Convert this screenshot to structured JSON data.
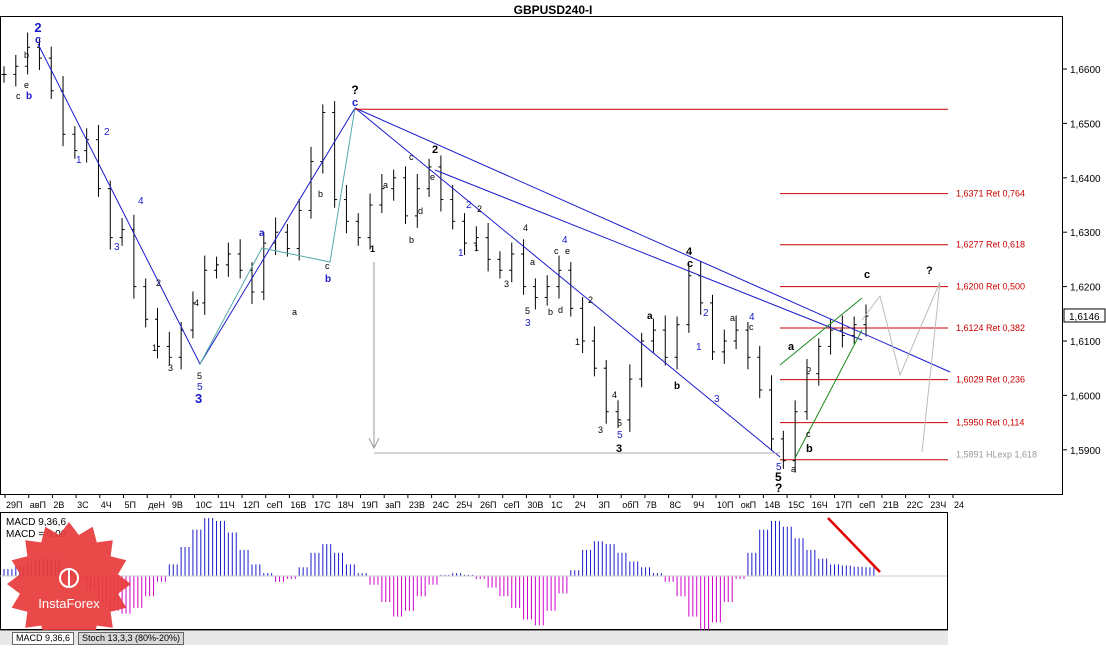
{
  "title": "GBPUSD240-I",
  "current_price": "1,6146",
  "price_axis_labels": [
    "1,6600",
    "1,6500",
    "1,6400",
    "1,6300",
    "1,6200",
    "1,6100",
    "1,6000",
    "1,5900"
  ],
  "date_axis_labels": [
    "29П",
    "авП",
    "2В",
    "3С",
    "4Ч",
    "5П",
    "деН",
    "9В",
    "10С",
    "11Ч",
    "12П",
    "сеП",
    "16В",
    "17С",
    "18Ч",
    "19П",
    "заП",
    "23В",
    "24С",
    "25Ч",
    "26П",
    "сеП",
    "30В",
    "1С",
    "2Ч",
    "3П",
    "обП",
    "7В",
    "8С",
    "9Ч",
    "10П",
    "окП",
    "14В",
    "15С",
    "16Ч",
    "17П",
    "сеП",
    "21В",
    "22С",
    "23Ч",
    "24"
  ],
  "macd_label": "MACD 9,36,6",
  "macd_value_label": "MACD = 0,00",
  "tabs": [
    "MACD 9,36,6",
    "Stoch 13,3,3 (80%-20%)"
  ],
  "logo_text": "InstaForex",
  "fib_levels": [
    {
      "label": "1,6371 Ret 0,764",
      "price": 1.6371
    },
    {
      "label": "1,6277 Ret 0,618",
      "price": 1.6277
    },
    {
      "label": "1,6200 Ret 0,500",
      "price": 1.62
    },
    {
      "label": "1,6124 Ret 0,382",
      "price": 1.6124
    },
    {
      "label": "1,6029 Ret 0,236",
      "price": 1.6029
    },
    {
      "label": "1,5950 Ret 0,114",
      "price": 1.595
    }
  ],
  "expansion_level": {
    "label": "1,5891 HLexp 1,618",
    "price": 1.5891
  },
  "top_resistance_price": 1.6526,
  "colors": {
    "fib": "#cc0000",
    "channel": "#1a1acc",
    "wave_blue": "#1a1acc",
    "macd_pos": "#1a1acc",
    "macd_neg": "#cc00cc",
    "logo": "#e8393a",
    "green_channel": "#1a8a1a"
  },
  "chart_data": {
    "type": "candlestick",
    "title": "GBPUSD240-I",
    "ylim": [
      1.581,
      1.67
    ],
    "close_series": [
      1.659,
      1.6605,
      1.664,
      1.662,
      1.656,
      1.648,
      1.645,
      1.647,
      1.638,
      1.629,
      1.6305,
      1.62,
      1.614,
      1.609,
      1.607,
      1.612,
      1.617,
      1.623,
      1.624,
      1.626,
      1.623,
      1.619,
      1.628,
      1.63,
      1.627,
      1.634,
      1.643,
      1.652,
      1.636,
      1.632,
      1.629,
      1.635,
      1.638,
      1.64,
      1.633,
      1.638,
      1.642,
      1.636,
      1.632,
      1.628,
      1.629,
      1.625,
      1.623,
      1.626,
      1.62,
      1.618,
      1.62,
      1.623,
      1.616,
      1.61,
      1.605,
      1.597,
      1.5955,
      1.603,
      1.61,
      1.612,
      1.607,
      1.613,
      1.622,
      1.617,
      1.608,
      1.61,
      1.612,
      1.607,
      1.601,
      1.592,
      1.588,
      1.597,
      1.604,
      1.609,
      1.612,
      1.611,
      1.613,
      1.6146
    ],
    "macd_hist": [
      0.12,
      0.18,
      0.25,
      0.3,
      0.28,
      0.15,
      -0.05,
      -0.25,
      -0.45,
      -0.6,
      -0.65,
      -0.55,
      -0.35,
      -0.1,
      0.2,
      0.5,
      0.8,
      1.0,
      0.95,
      0.75,
      0.45,
      0.2,
      0.05,
      -0.1,
      -0.05,
      0.15,
      0.4,
      0.55,
      0.4,
      0.2,
      0.05,
      -0.15,
      -0.45,
      -0.7,
      -0.6,
      -0.35,
      -0.15,
      0.02,
      0.05,
      0.02,
      -0.05,
      -0.2,
      -0.35,
      -0.55,
      -0.75,
      -0.85,
      -0.6,
      -0.3,
      0.1,
      0.45,
      0.6,
      0.55,
      0.4,
      0.25,
      0.15,
      0.05,
      -0.1,
      -0.35,
      -0.7,
      -0.95,
      -0.8,
      -0.45,
      -0.05,
      0.4,
      0.8,
      0.95,
      0.85,
      0.65,
      0.45,
      0.3,
      0.2,
      0.18,
      0.16,
      0.15
    ]
  }
}
